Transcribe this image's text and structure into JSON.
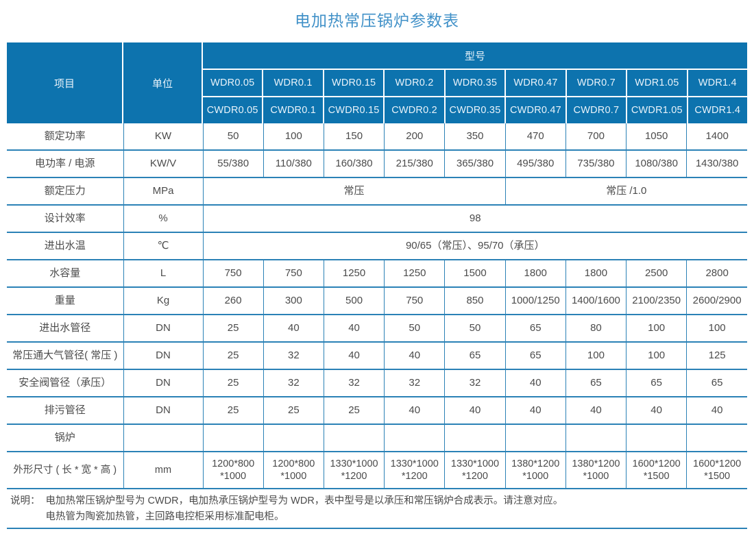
{
  "title": "电加热常压锅炉参数表",
  "colors": {
    "header_bg": "#0d73ae",
    "header_text": "#e9f3fa",
    "border": "#2a81b6",
    "title": "#4191c8",
    "text": "#4b4b4b"
  },
  "table": {
    "corner_item": "项目",
    "corner_unit": "单位",
    "model_header": "型号",
    "models_row1": [
      "WDR0.05",
      "WDR0.1",
      "WDR0.15",
      "WDR0.2",
      "WDR0.35",
      "WDR0.47",
      "WDR0.7",
      "WDR1.05",
      "WDR1.4"
    ],
    "models_row2": [
      "CWDR0.05",
      "CWDR0.1",
      "CWDR0.15",
      "CWDR0.2",
      "CWDR0.35",
      "CWDR0.47",
      "CWDR0.7",
      "CWDR1.05",
      "CWDR1.4"
    ],
    "rows": [
      {
        "label": "额定功率",
        "unit": "KW",
        "type": "cells",
        "values": [
          "50",
          "100",
          "150",
          "200",
          "350",
          "470",
          "700",
          "1050",
          "1400"
        ]
      },
      {
        "label": "电功率 / 电源",
        "unit": "KW/V",
        "type": "cells",
        "values": [
          "55/380",
          "110/380",
          "160/380",
          "215/380",
          "365/380",
          "495/380",
          "735/380",
          "1080/380",
          "1430/380"
        ]
      },
      {
        "label": "额定压力",
        "unit": "MPa",
        "type": "span",
        "values": [
          "常压",
          "常压 /1.0"
        ],
        "spans": [
          5,
          4
        ]
      },
      {
        "label": "设计效率",
        "unit": "%",
        "type": "span",
        "values": [
          "98"
        ],
        "spans": [
          9
        ]
      },
      {
        "label": "进出水温",
        "unit": "℃",
        "type": "span",
        "values": [
          "90/65（常压）、95/70（承压）"
        ],
        "spans": [
          9
        ]
      },
      {
        "label": "水容量",
        "unit": "L",
        "type": "cells",
        "values": [
          "750",
          "750",
          "1250",
          "1250",
          "1500",
          "1800",
          "1800",
          "2500",
          "2800"
        ]
      },
      {
        "label": "重量",
        "unit": "Kg",
        "type": "cells",
        "values": [
          "260",
          "300",
          "500",
          "750",
          "850",
          "1000/1250",
          "1400/1600",
          "2100/2350",
          "2600/2900"
        ]
      },
      {
        "label": "进出水管径",
        "unit": "DN",
        "type": "cells",
        "values": [
          "25",
          "40",
          "40",
          "50",
          "50",
          "65",
          "80",
          "100",
          "100"
        ]
      },
      {
        "label": "常压通大气管径( 常压 )",
        "unit": "DN",
        "type": "cells",
        "values": [
          "25",
          "32",
          "40",
          "40",
          "65",
          "65",
          "100",
          "100",
          "125"
        ]
      },
      {
        "label": "安全阀管径（承压）",
        "unit": "DN",
        "type": "cells",
        "values": [
          "25",
          "32",
          "32",
          "32",
          "32",
          "40",
          "65",
          "65",
          "65"
        ]
      },
      {
        "label": "排污管径",
        "unit": "DN",
        "type": "cells",
        "values": [
          "25",
          "25",
          "25",
          "40",
          "40",
          "40",
          "40",
          "40",
          "40"
        ]
      },
      {
        "label": "锅炉",
        "unit": "",
        "type": "cells",
        "values": [
          "",
          "",
          "",
          "",
          "",
          "",
          "",
          "",
          ""
        ]
      },
      {
        "label": "外形尺寸 ( 长 * 宽 * 高 )",
        "unit": "mm",
        "type": "cells",
        "tall": true,
        "values": [
          "1200*800\n*1000",
          "1200*800\n*1000",
          "1330*1000\n*1200",
          "1330*1000\n*1200",
          "1330*1000\n*1200",
          "1380*1200\n*1000",
          "1380*1200\n*1000",
          "1600*1200\n*1500",
          "1600*1200\n*1500"
        ]
      }
    ]
  },
  "note": {
    "label": "说明：",
    "line1": "电加热常压锅炉型号为 CWDR，电加热承压锅炉型号为 WDR，表中型号是以承压和常压锅炉合成表示。请注意对应。",
    "line2": "电热管为陶瓷加热管，主回路电控柜采用标准配电柜。"
  }
}
